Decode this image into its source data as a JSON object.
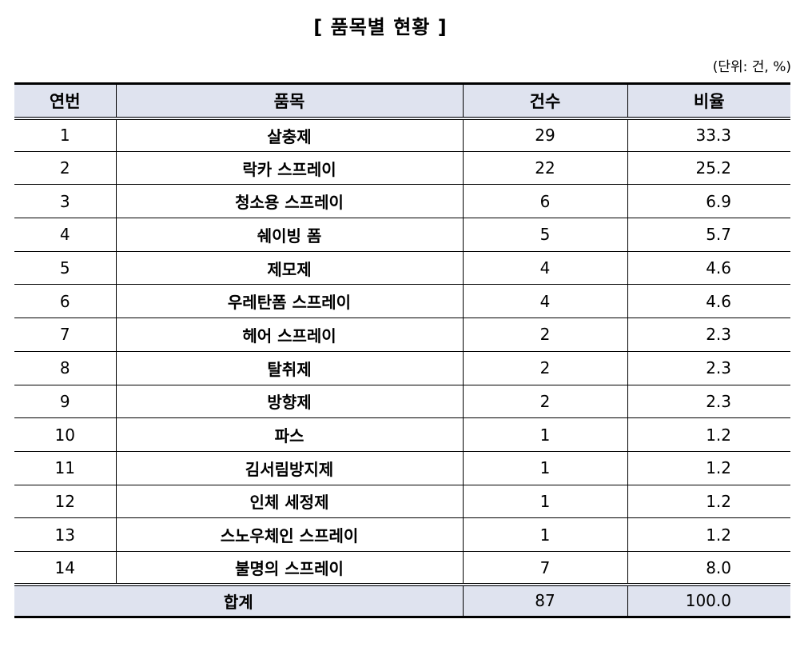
{
  "title": "[ 품목별 현황 ]",
  "unit_note": "(단위: 건, %)",
  "headers": [
    "연번",
    "품목",
    "건수",
    "비율"
  ],
  "rows": [
    {
      "no": "1",
      "item": "살충제",
      "count": "29",
      "ratio": "33.3"
    },
    {
      "no": "2",
      "item": "락카 스프레이",
      "count": "22",
      "ratio": "25.2"
    },
    {
      "no": "3",
      "item": "청소용 스프레이",
      "count": "6",
      "ratio": "6.9"
    },
    {
      "no": "4",
      "item": "쉐이빙 폼",
      "count": "5",
      "ratio": "5.7"
    },
    {
      "no": "5",
      "item": "제모제",
      "count": "4",
      "ratio": "4.6"
    },
    {
      "no": "6",
      "item": "우레탄폼 스프레이",
      "count": "4",
      "ratio": "4.6"
    },
    {
      "no": "7",
      "item": "헤어 스프레이",
      "count": "2",
      "ratio": "2.3"
    },
    {
      "no": "8",
      "item": "탈취제",
      "count": "2",
      "ratio": "2.3"
    },
    {
      "no": "9",
      "item": "방향제",
      "count": "2",
      "ratio": "2.3"
    },
    {
      "no": "10",
      "item": "파스",
      "count": "1",
      "ratio": "1.2"
    },
    {
      "no": "11",
      "item": "김서림방지제",
      "count": "1",
      "ratio": "1.2"
    },
    {
      "no": "12",
      "item": "인체 세정제",
      "count": "1",
      "ratio": "1.2"
    },
    {
      "no": "13",
      "item": "스노우체인 스프레이",
      "count": "1",
      "ratio": "1.2"
    },
    {
      "no": "14",
      "item": "불명의 스프레이",
      "count": "7",
      "ratio": "8.0"
    }
  ],
  "total": {
    "label": "합계",
    "count": "87",
    "ratio": "100.0"
  },
  "colors": {
    "header_bg": "#dfe3ef",
    "border": "#000000"
  }
}
